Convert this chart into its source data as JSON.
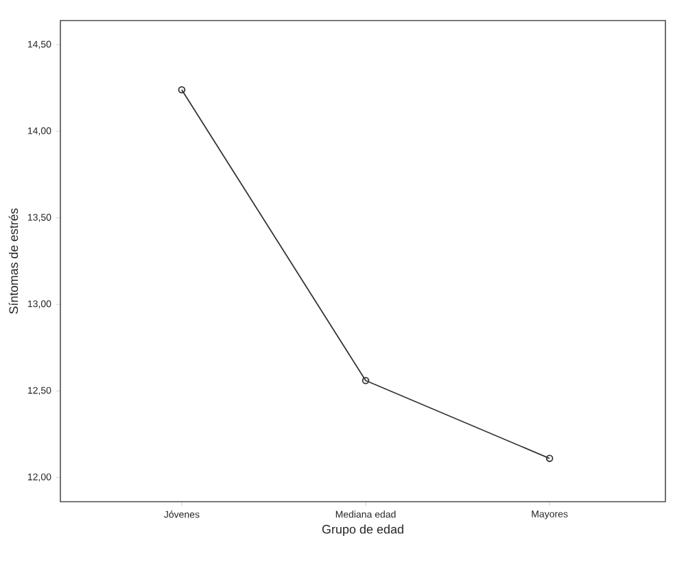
{
  "chart_data": {
    "type": "line",
    "xlabel": "Grupo de edad",
    "ylabel": "Síntomas de estrés",
    "categories": [
      "Jóvenes",
      "Mediana edad",
      "Mayores"
    ],
    "series": [
      {
        "color": "#333333",
        "values": [
          14.24,
          12.56,
          12.11
        ]
      }
    ],
    "ylim": [
      11.86,
      14.64
    ],
    "yticks": [
      {
        "value": 12,
        "label": "12,00"
      },
      {
        "value": 12.5,
        "label": "12,50"
      },
      {
        "value": 13,
        "label": "13,00"
      },
      {
        "value": 13.5,
        "label": "13,50"
      },
      {
        "value": 14,
        "label": "14,00"
      },
      {
        "value": 14.5,
        "label": "14,50"
      }
    ],
    "marker": "circle",
    "line_style": "solid"
  }
}
